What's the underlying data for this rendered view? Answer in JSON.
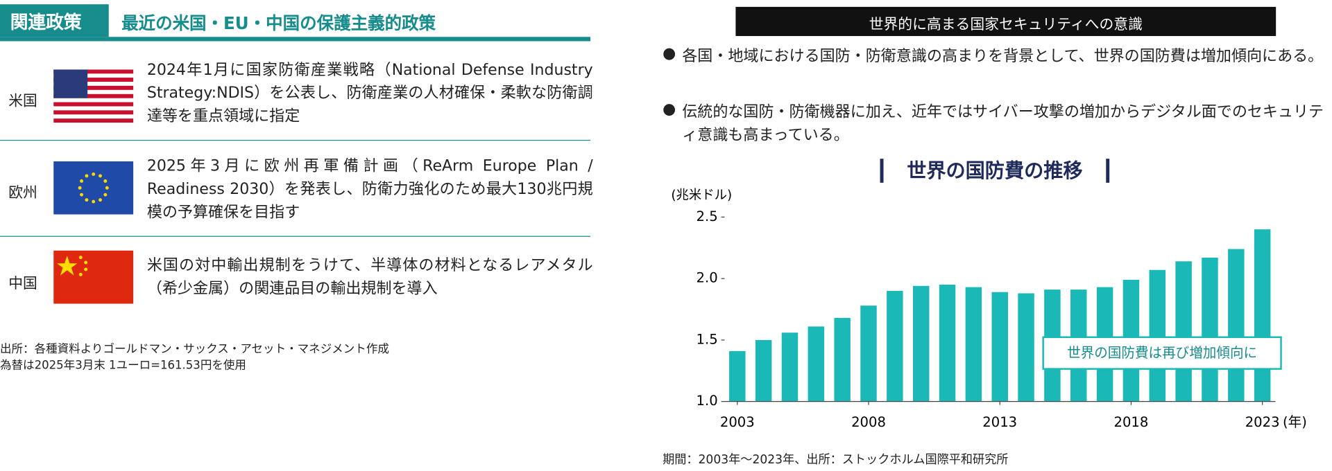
{
  "left": {
    "tag": "関連政策",
    "title": "最近の米国・EU・中国の保護主義的政策",
    "rows": [
      {
        "country": "米国",
        "text": "2024年1月に国家防衛産業戦略（National Defense Industry Strategy:NDIS）を公表し、防衛産業の人材確保・柔軟な防衛調達等を重点領域に指定"
      },
      {
        "country": "欧州",
        "text": "2025年3月に欧州再軍備計画（ReArm Europe Plan / Readiness 2030）を発表し、防衛力強化のため最大130兆円規模の予算確保を目指す"
      },
      {
        "country": "中国",
        "text": "米国の対中輸出規制をうけて、半導体の材料となるレアメタル（希少金属）の関連品目の輸出規制を導入"
      }
    ],
    "notes": [
      "出所：各種資料よりゴールドマン・サックス・アセット・マネジメント作成",
      "為替は2025年3月末 1ユーロ=161.53円を使用"
    ]
  },
  "right": {
    "header": "世界的に高まる国家セキュリティへの意識",
    "bullets": [
      "各国・地域における国防・防衛意識の高まりを背景として、世界の国防費は増加傾向にある。",
      "伝統的な国防・防衛機器に加え、近年ではサイバー攻撃の増加からデジタル面でのセキュリティ意識も高まっている。"
    ],
    "footer": "期間：2003年～2023年、出所：ストックホルム国際平和研究所"
  },
  "chart_data": {
    "type": "bar",
    "title": "世界の国防費の推移",
    "y_label": "(兆米ドル)",
    "x_label": "(年)",
    "x": [
      2003,
      2004,
      2005,
      2006,
      2007,
      2008,
      2009,
      2010,
      2011,
      2012,
      2013,
      2014,
      2015,
      2016,
      2017,
      2018,
      2019,
      2020,
      2021,
      2022,
      2023
    ],
    "values": [
      1.41,
      1.5,
      1.56,
      1.61,
      1.68,
      1.78,
      1.9,
      1.94,
      1.95,
      1.93,
      1.89,
      1.88,
      1.91,
      1.91,
      1.93,
      1.99,
      2.07,
      2.14,
      2.17,
      2.24,
      2.4
    ],
    "color": "#1bb8b8",
    "xlim": [
      2002.5,
      2023.5
    ],
    "xticks": [
      2003,
      2008,
      2013,
      2018,
      2023
    ],
    "ylim": [
      1.0,
      2.5
    ],
    "yticks": [
      {
        "value": 1,
        "label": "1.0"
      },
      1.5,
      {
        "value": 2,
        "label": "2.0"
      },
      2.5
    ],
    "annotation": "世界の国防費は再び増加傾向に",
    "grid": false
  }
}
